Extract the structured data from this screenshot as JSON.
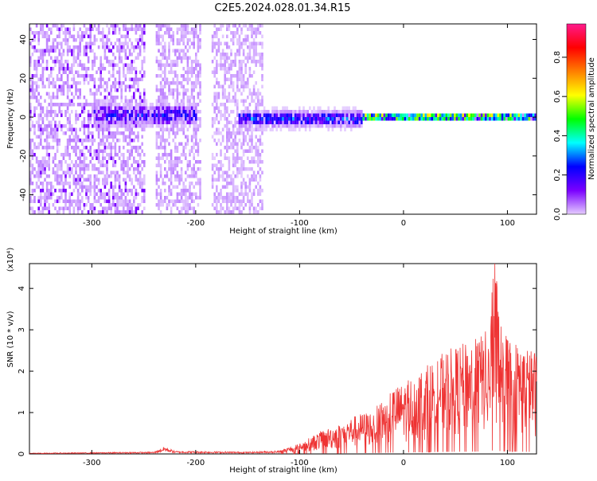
{
  "title": "C2E5.2024.028.01.34.R15",
  "chart_data": [
    {
      "type": "heatmap",
      "title": "C2E5.2024.028.01.34.R15",
      "xlabel": "Height of straight line (km)",
      "ylabel": "Frequency (Hz)",
      "xlim": [
        -360,
        128
      ],
      "ylim": [
        -50,
        48
      ],
      "xticks": [
        -300,
        -200,
        -100,
        0,
        100
      ],
      "xtick_labels": [
        "-300",
        "-200",
        "-100",
        "0",
        "100"
      ],
      "yticks": [
        -40,
        -20,
        0,
        20,
        40
      ],
      "ytick_labels": [
        "-40",
        "-20",
        "0",
        "20",
        "40"
      ],
      "grid": false,
      "colorbar": {
        "label": "Normalized spectral amplitude",
        "range": [
          0,
          0.97
        ],
        "ticks": [
          0.0,
          0.2,
          0.4,
          0.6,
          0.8
        ],
        "tick_labels": [
          "0.0",
          "0.2",
          "0.4",
          "0.6",
          "0.8"
        ],
        "colormap": "rainbow",
        "colors": [
          "#e5ccff",
          "#7a00ff",
          "#0000ff",
          "#00ffff",
          "#00ff00",
          "#ffff00",
          "#ff7f00",
          "#ff0000",
          "#ff1a8c"
        ]
      },
      "regions": [
        {
          "x": [
            -360,
            -250
          ],
          "freq_center": 0,
          "freq_spread": 50,
          "amplitude": 0.08,
          "description_type": "broadband noise"
        },
        {
          "x": [
            -240,
            -195
          ],
          "freq_center": 0,
          "freq_spread": 50,
          "amplitude": 0.07,
          "description_type": "broadband noise"
        },
        {
          "x": [
            -185,
            -135
          ],
          "freq_center": 0,
          "freq_spread": 50,
          "amplitude": 0.06,
          "description_type": "broadband noise"
        },
        {
          "x": [
            -300,
            -200
          ],
          "freq_center": 2,
          "freq_spread": 8,
          "amplitude": 0.2
        },
        {
          "x": [
            -160,
            -40
          ],
          "freq_center": 0,
          "freq_spread": 6,
          "amplitude": 0.25
        },
        {
          "x": [
            -40,
            128
          ],
          "freq_center": 1,
          "freq_spread": 2,
          "amplitude": 0.85
        }
      ]
    },
    {
      "type": "line",
      "xlabel": "Height of straight line (km)",
      "ylabel": "SNR (10 * v/v)",
      "y_multiplier": "(x10⁴)",
      "xlim": [
        -360,
        128
      ],
      "ylim": [
        0,
        4.6
      ],
      "xticks": [
        -300,
        -200,
        -100,
        0,
        100
      ],
      "xtick_labels": [
        "-300",
        "-200",
        "-100",
        "0",
        "100"
      ],
      "yticks": [
        0,
        1,
        2,
        3,
        4
      ],
      "ytick_labels": [
        "0",
        "1",
        "2",
        "3",
        "4"
      ],
      "grid": false,
      "series": [
        {
          "color": "#ee3333",
          "envelope": [
            [
              -360,
              0.02
            ],
            [
              -240,
              0.05
            ],
            [
              -230,
              0.18
            ],
            [
              -220,
              0.07
            ],
            [
              -150,
              0.05
            ],
            [
              -120,
              0.08
            ],
            [
              -100,
              0.25
            ],
            [
              -80,
              0.55
            ],
            [
              -60,
              0.75
            ],
            [
              -45,
              0.95
            ],
            [
              -30,
              1.05
            ],
            [
              -20,
              1.3
            ],
            [
              -10,
              1.6
            ],
            [
              0,
              1.7
            ],
            [
              10,
              1.9
            ],
            [
              20,
              2.1
            ],
            [
              30,
              2.3
            ],
            [
              40,
              2.5
            ],
            [
              50,
              2.6
            ],
            [
              60,
              2.7
            ],
            [
              70,
              2.8
            ],
            [
              80,
              3.0
            ],
            [
              88,
              4.6
            ],
            [
              95,
              3.0
            ],
            [
              105,
              2.8
            ],
            [
              115,
              2.6
            ],
            [
              128,
              2.5
            ]
          ]
        }
      ]
    }
  ]
}
